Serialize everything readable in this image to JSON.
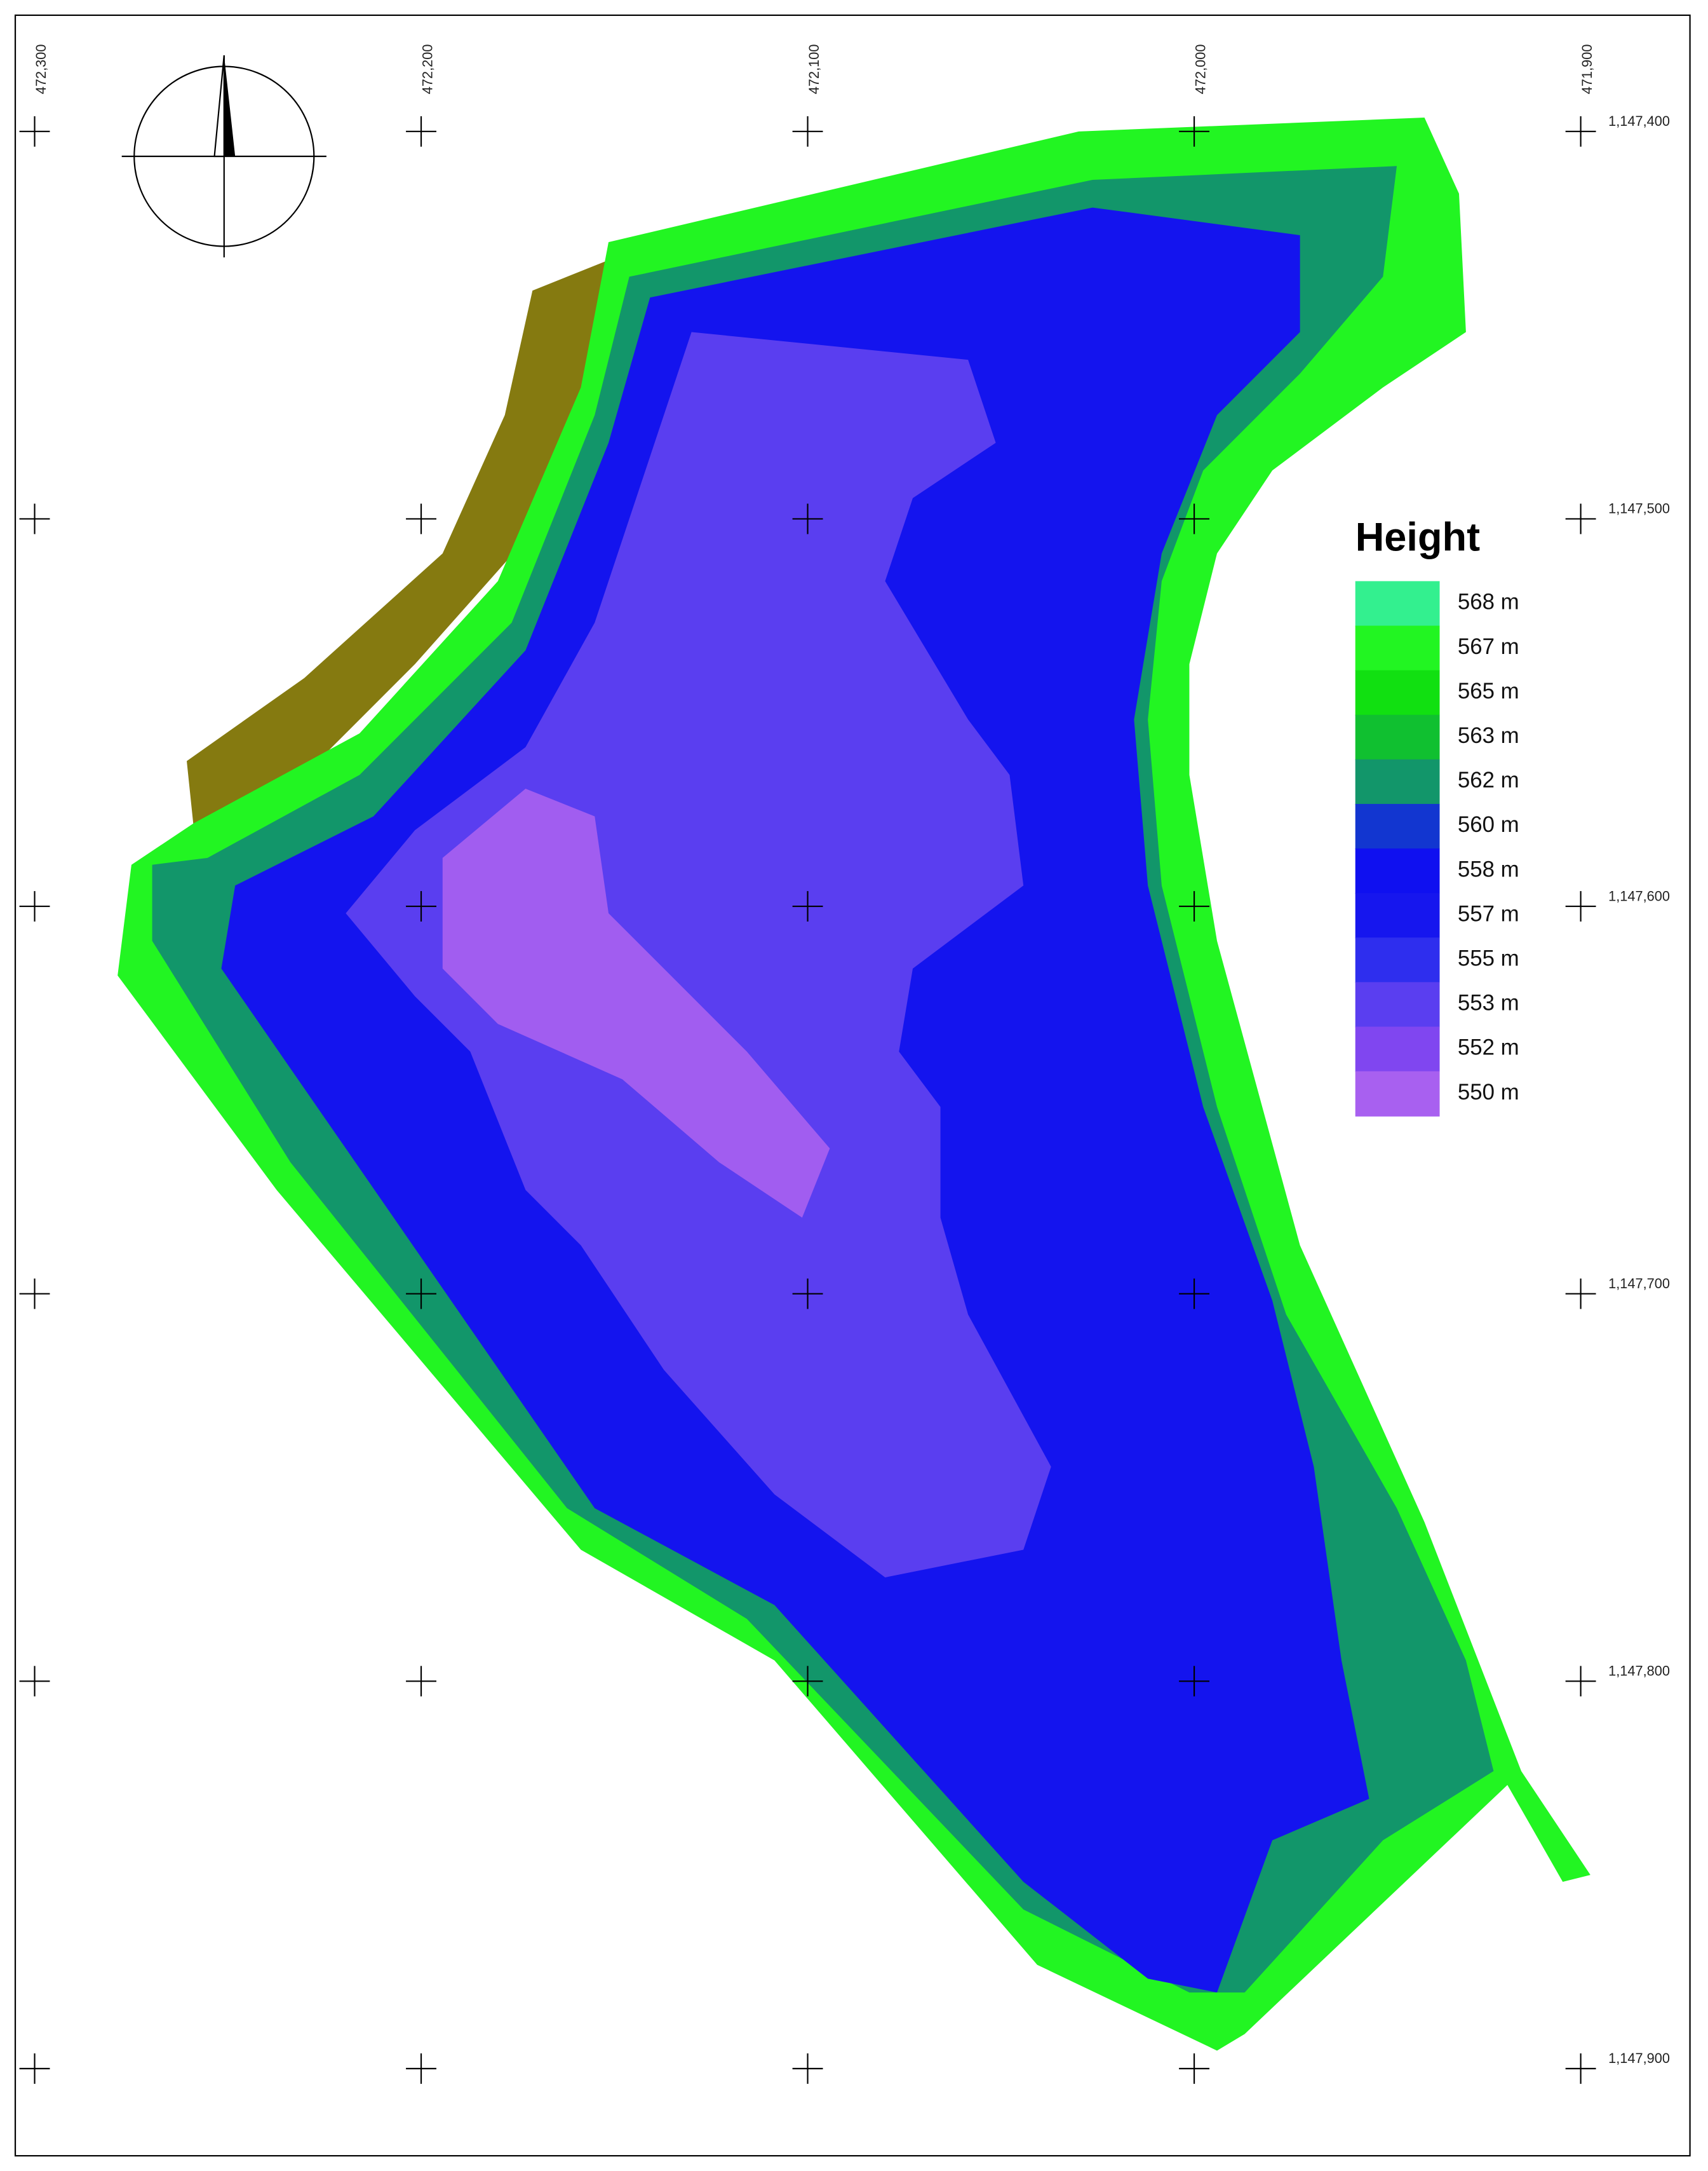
{
  "map": {
    "x_labels": [
      "472,300",
      "472,200",
      "472,100",
      "472,000",
      "471,900"
    ],
    "y_labels": [
      "1,147,400",
      "1,147,500",
      "1,147,600",
      "1,147,700",
      "1,147,800",
      "1,147,900"
    ],
    "legend": {
      "title": "Height",
      "items": [
        {
          "label": "568 m",
          "color": "#33f08f"
        },
        {
          "label": "567 m",
          "color": "#22f522"
        },
        {
          "label": "565 m",
          "color": "#11e011"
        },
        {
          "label": "563 m",
          "color": "#10c030"
        },
        {
          "label": "562 m",
          "color": "#12966a"
        },
        {
          "label": "560 m",
          "color": "#1236d0"
        },
        {
          "label": "558 m",
          "color": "#0f10f0"
        },
        {
          "label": "557 m",
          "color": "#1616ee"
        },
        {
          "label": "555 m",
          "color": "#2e2eee"
        },
        {
          "label": "553 m",
          "color": "#5a3ef0"
        },
        {
          "label": "552 m",
          "color": "#8046f0"
        },
        {
          "label": "550 m",
          "color": "#a860f0"
        }
      ]
    }
  }
}
